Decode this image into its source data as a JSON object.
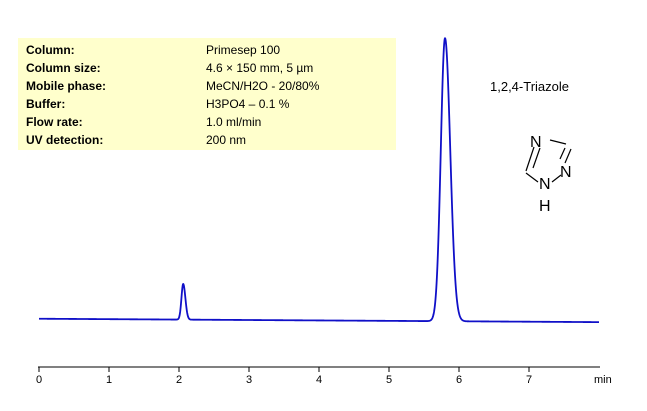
{
  "info": [
    {
      "label": "Column:",
      "value": "Primesep 100"
    },
    {
      "label": "Column size:",
      "value": "4.6 × 150 mm, 5 µm"
    },
    {
      "label": "Mobile phase:",
      "value": "MeCN/H2O - 20/80%"
    },
    {
      "label": "Buffer:",
      "value": "H3PO4 – 0.1 %"
    },
    {
      "label": "Flow rate:",
      "value": "1.0 ml/min"
    },
    {
      "label": "UV detection:",
      "value": "200 nm"
    }
  ],
  "compound": {
    "name": "1,2,4-Triazole",
    "atoms": {
      "n_top": "N",
      "n_right": "N",
      "n_bottom": "N",
      "h": "H"
    }
  },
  "chart_data": {
    "type": "line",
    "title": "",
    "xlabel": "min",
    "ylabel": "",
    "xlim": [
      0,
      8
    ],
    "ylim": [
      0,
      100
    ],
    "x_ticks": [
      0,
      1,
      2,
      3,
      4,
      5,
      6,
      7
    ],
    "x_tick_labels": [
      "0",
      "1",
      "2",
      "3",
      "4",
      "5",
      "6",
      "7"
    ],
    "series_color": "#1010c8",
    "baseline": 0.8,
    "peaks": [
      {
        "time": 2.06,
        "height": 12.6,
        "width": 0.025
      },
      {
        "time": 5.8,
        "height": 100,
        "width": 0.06
      }
    ]
  }
}
